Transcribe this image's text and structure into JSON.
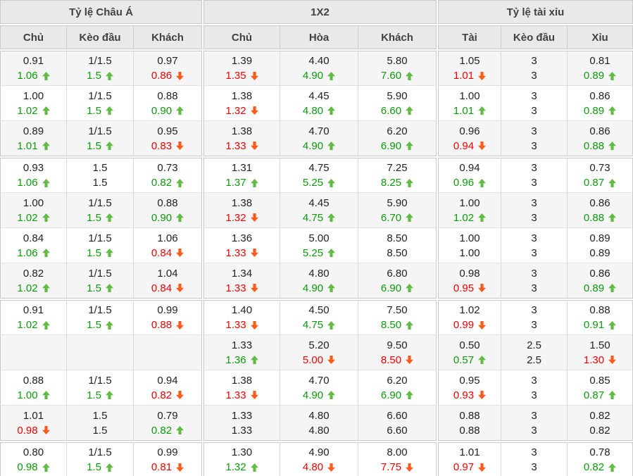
{
  "table": {
    "groups": [
      {
        "title": "Tỷ lệ Châu Á",
        "columns": [
          "Chủ",
          "Kèo đầu",
          "Khách"
        ]
      },
      {
        "title": "1X2",
        "columns": [
          "Chủ",
          "Hòa",
          "Khách"
        ]
      },
      {
        "title": "Tỷ lệ tài xỉu",
        "columns": [
          "Tài",
          "Kèo đầu",
          "Xỉu"
        ]
      }
    ],
    "colors": {
      "header_bg": "#e9e9e9",
      "stripe_bg": "#f5f5f5",
      "green_text": "#0c9a0c",
      "green_arrow": "#61bb45",
      "red_text": "#f40000",
      "red_arrow": "#ff5a19"
    },
    "blocks": [
      {
        "rows": [
          {
            "cells": [
              [
                "0.91",
                "1.06",
                "up"
              ],
              [
                "1/1.5",
                "1.5",
                "up"
              ],
              [
                "0.97",
                "0.86",
                "down"
              ],
              [
                "1.39",
                "1.35",
                "down"
              ],
              [
                "4.40",
                "4.90",
                "up"
              ],
              [
                "5.80",
                "7.60",
                "up"
              ],
              [
                "1.05",
                "1.01",
                "down"
              ],
              [
                "3",
                "3",
                "none"
              ],
              [
                "0.81",
                "0.89",
                "up"
              ]
            ]
          },
          {
            "cells": [
              [
                "1.00",
                "1.02",
                "up"
              ],
              [
                "1/1.5",
                "1.5",
                "up"
              ],
              [
                "0.88",
                "0.90",
                "up"
              ],
              [
                "1.38",
                "1.32",
                "down"
              ],
              [
                "4.45",
                "4.80",
                "up"
              ],
              [
                "5.90",
                "6.60",
                "up"
              ],
              [
                "1.00",
                "1.01",
                "up"
              ],
              [
                "3",
                "3",
                "none"
              ],
              [
                "0.86",
                "0.89",
                "up"
              ]
            ]
          },
          {
            "cells": [
              [
                "0.89",
                "1.01",
                "up"
              ],
              [
                "1/1.5",
                "1.5",
                "up"
              ],
              [
                "0.95",
                "0.83",
                "down"
              ],
              [
                "1.38",
                "1.33",
                "down"
              ],
              [
                "4.70",
                "4.90",
                "up"
              ],
              [
                "6.20",
                "6.90",
                "up"
              ],
              [
                "0.96",
                "0.94",
                "down"
              ],
              [
                "3",
                "3",
                "none"
              ],
              [
                "0.86",
                "0.88",
                "up"
              ]
            ]
          }
        ]
      },
      {
        "rows": [
          {
            "cells": [
              [
                "0.93",
                "1.06",
                "up"
              ],
              [
                "1.5",
                "1.5",
                "none"
              ],
              [
                "0.73",
                "0.82",
                "up"
              ],
              [
                "1.31",
                "1.37",
                "up"
              ],
              [
                "4.75",
                "5.25",
                "up"
              ],
              [
                "7.25",
                "8.25",
                "up"
              ],
              [
                "0.94",
                "0.96",
                "up"
              ],
              [
                "3",
                "3",
                "none"
              ],
              [
                "0.73",
                "0.87",
                "up"
              ]
            ]
          },
          {
            "cells": [
              [
                "1.00",
                "1.02",
                "up"
              ],
              [
                "1/1.5",
                "1.5",
                "up"
              ],
              [
                "0.88",
                "0.90",
                "up"
              ],
              [
                "1.38",
                "1.32",
                "down"
              ],
              [
                "4.45",
                "4.75",
                "up"
              ],
              [
                "5.90",
                "6.70",
                "up"
              ],
              [
                "1.00",
                "1.02",
                "up"
              ],
              [
                "3",
                "3",
                "none"
              ],
              [
                "0.86",
                "0.88",
                "up"
              ]
            ]
          },
          {
            "cells": [
              [
                "0.84",
                "1.06",
                "up"
              ],
              [
                "1/1.5",
                "1.5",
                "up"
              ],
              [
                "1.06",
                "0.84",
                "down"
              ],
              [
                "1.36",
                "1.33",
                "down"
              ],
              [
                "5.00",
                "5.25",
                "up"
              ],
              [
                "8.50",
                "8.50",
                "none"
              ],
              [
                "1.00",
                "1.00",
                "none"
              ],
              [
                "3",
                "3",
                "none"
              ],
              [
                "0.89",
                "0.89",
                "none"
              ]
            ]
          },
          {
            "cells": [
              [
                "0.82",
                "1.02",
                "up"
              ],
              [
                "1/1.5",
                "1.5",
                "up"
              ],
              [
                "1.04",
                "0.84",
                "down"
              ],
              [
                "1.34",
                "1.33",
                "down"
              ],
              [
                "4.80",
                "4.90",
                "up"
              ],
              [
                "6.80",
                "6.90",
                "up"
              ],
              [
                "0.98",
                "0.95",
                "down"
              ],
              [
                "3",
                "3",
                "none"
              ],
              [
                "0.86",
                "0.89",
                "up"
              ]
            ]
          }
        ]
      },
      {
        "rows": [
          {
            "cells": [
              [
                "0.91",
                "1.02",
                "up"
              ],
              [
                "1/1.5",
                "1.5",
                "up"
              ],
              [
                "0.99",
                "0.88",
                "down"
              ],
              [
                "1.40",
                "1.33",
                "down"
              ],
              [
                "4.50",
                "4.75",
                "up"
              ],
              [
                "7.50",
                "8.50",
                "up"
              ],
              [
                "1.02",
                "0.99",
                "down"
              ],
              [
                "3",
                "3",
                "none"
              ],
              [
                "0.88",
                "0.91",
                "up"
              ]
            ]
          },
          {
            "cells": [
              [
                "",
                "",
                "none"
              ],
              [
                "",
                "",
                "none"
              ],
              [
                "",
                "",
                "none"
              ],
              [
                "1.33",
                "1.36",
                "up"
              ],
              [
                "5.20",
                "5.00",
                "down"
              ],
              [
                "9.50",
                "8.50",
                "down"
              ],
              [
                "0.50",
                "0.57",
                "up"
              ],
              [
                "2.5",
                "2.5",
                "none"
              ],
              [
                "1.50",
                "1.30",
                "down"
              ]
            ]
          },
          {
            "cells": [
              [
                "0.88",
                "1.00",
                "up"
              ],
              [
                "1/1.5",
                "1.5",
                "up"
              ],
              [
                "0.94",
                "0.82",
                "down"
              ],
              [
                "1.38",
                "1.33",
                "down"
              ],
              [
                "4.70",
                "4.90",
                "up"
              ],
              [
                "6.20",
                "6.90",
                "up"
              ],
              [
                "0.95",
                "0.93",
                "down"
              ],
              [
                "3",
                "3",
                "none"
              ],
              [
                "0.85",
                "0.87",
                "up"
              ]
            ]
          },
          {
            "cells": [
              [
                "1.01",
                "0.98",
                "down"
              ],
              [
                "1.5",
                "1.5",
                "none"
              ],
              [
                "0.79",
                "0.82",
                "up"
              ],
              [
                "1.33",
                "1.33",
                "none"
              ],
              [
                "4.80",
                "4.80",
                "none"
              ],
              [
                "6.60",
                "6.60",
                "none"
              ],
              [
                "0.88",
                "0.88",
                "none"
              ],
              [
                "3",
                "3",
                "none"
              ],
              [
                "0.82",
                "0.82",
                "none"
              ]
            ]
          }
        ]
      },
      {
        "rows": [
          {
            "cells": [
              [
                "0.80",
                "0.98",
                "up"
              ],
              [
                "1/1.5",
                "1.5",
                "up"
              ],
              [
                "0.99",
                "0.81",
                "down"
              ],
              [
                "1.30",
                "1.32",
                "up"
              ],
              [
                "4.90",
                "4.80",
                "down"
              ],
              [
                "8.00",
                "7.75",
                "down"
              ],
              [
                "1.01",
                "0.97",
                "down"
              ],
              [
                "3",
                "3",
                "none"
              ],
              [
                "0.78",
                "0.82",
                "up"
              ]
            ]
          }
        ]
      }
    ]
  }
}
